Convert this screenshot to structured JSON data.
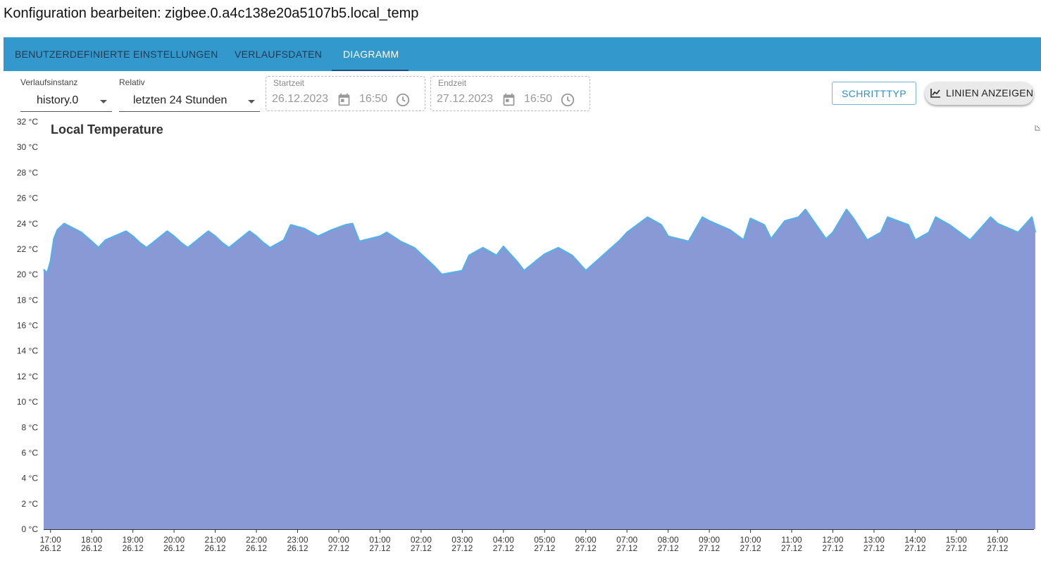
{
  "dialog": {
    "title": "Konfiguration bearbeiten: zigbee.0.a4c138e20a5107b5.local_temp"
  },
  "tabs": [
    {
      "label": "BENUTZERDEFINIERTE EINSTELLUNGEN",
      "active": false
    },
    {
      "label": "VERLAUFSDATEN",
      "active": false
    },
    {
      "label": "DIAGRAMM",
      "active": true
    }
  ],
  "toolbar": {
    "instance": {
      "label": "Verlaufsinstanz",
      "value": "history.0"
    },
    "relative": {
      "label": "Relativ",
      "value": "letzten 24 Stunden"
    },
    "start": {
      "label": "Startzeit",
      "date": "26.12.2023",
      "time": "16:50"
    },
    "end": {
      "label": "Endzeit",
      "date": "27.12.2023",
      "time": "16:50"
    },
    "font_type_button": "SCHRITTTYP",
    "show_lines_button": "LINIEN ANZEIGEN"
  },
  "chart_data": {
    "type": "area",
    "title": "Local Temperature",
    "ylabel": "",
    "xlabel": "",
    "ylim": [
      0,
      32
    ],
    "y_unit": "°C",
    "yticks": [
      "0 °C",
      "2 °C",
      "4 °C",
      "6 °C",
      "8 °C",
      "10 °C",
      "12 °C",
      "14 °C",
      "16 °C",
      "18 °C",
      "20 °C",
      "22 °C",
      "24 °C",
      "26 °C",
      "28 °C",
      "30 °C",
      "32 °C"
    ],
    "xticks": [
      {
        "time": "17:00",
        "date": "26.12"
      },
      {
        "time": "18:00",
        "date": "26.12"
      },
      {
        "time": "19:00",
        "date": "26.12"
      },
      {
        "time": "20:00",
        "date": "26.12"
      },
      {
        "time": "21:00",
        "date": "26.12"
      },
      {
        "time": "22:00",
        "date": "26.12"
      },
      {
        "time": "23:00",
        "date": "26.12"
      },
      {
        "time": "00:00",
        "date": "27.12"
      },
      {
        "time": "01:00",
        "date": "27.12"
      },
      {
        "time": "02:00",
        "date": "27.12"
      },
      {
        "time": "03:00",
        "date": "27.12"
      },
      {
        "time": "04:00",
        "date": "27.12"
      },
      {
        "time": "05:00",
        "date": "27.12"
      },
      {
        "time": "06:00",
        "date": "27.12"
      },
      {
        "time": "07:00",
        "date": "27.12"
      },
      {
        "time": "08:00",
        "date": "27.12"
      },
      {
        "time": "09:00",
        "date": "27.12"
      },
      {
        "time": "10:00",
        "date": "27.12"
      },
      {
        "time": "11:00",
        "date": "27.12"
      },
      {
        "time": "12:00",
        "date": "27.12"
      },
      {
        "time": "13:00",
        "date": "27.12"
      },
      {
        "time": "14:00",
        "date": "27.12"
      },
      {
        "time": "15:00",
        "date": "27.12"
      },
      {
        "time": "16:00",
        "date": "27.12"
      }
    ],
    "x_range": [
      "26.12.2023 16:50",
      "27.12.2023 16:50"
    ],
    "series": [
      {
        "color_fill": "#8899d6",
        "color_line": "#5aaee6",
        "x": [
          "16:50",
          "16:55",
          "17:00",
          "17:05",
          "17:10",
          "17:20",
          "17:45",
          "18:00",
          "18:10",
          "18:20",
          "18:50",
          "19:00",
          "19:10",
          "19:20",
          "19:50",
          "20:00",
          "20:10",
          "20:20",
          "20:50",
          "21:00",
          "21:10",
          "21:20",
          "21:50",
          "22:00",
          "22:10",
          "22:20",
          "22:40",
          "22:50",
          "23:10",
          "23:30",
          "23:50",
          "24:10",
          "24:20",
          "24:30",
          "25:00",
          "25:10",
          "25:30",
          "25:50",
          "26:00",
          "26:10",
          "26:20",
          "26:30",
          "27:00",
          "27:10",
          "27:30",
          "27:50",
          "28:00",
          "28:10",
          "28:20",
          "28:30",
          "29:00",
          "29:20",
          "29:40",
          "29:50",
          "30:00",
          "30:50",
          "31:00",
          "31:30",
          "31:50",
          "32:00",
          "32:30",
          "32:50",
          "33:00",
          "33:30",
          "33:50",
          "34:00",
          "34:20",
          "34:30",
          "34:50",
          "35:10",
          "35:20",
          "35:50",
          "36:00",
          "36:20",
          "36:30",
          "36:50",
          "37:10",
          "37:20",
          "37:50",
          "38:00",
          "38:20",
          "38:30",
          "38:50",
          "39:20",
          "39:30",
          "39:50",
          "40:00",
          "40:30",
          "40:50",
          "40:55"
        ],
        "values": [
          20.4,
          20.1,
          21.0,
          22.8,
          23.5,
          24.0,
          23.3,
          22.6,
          22.1,
          22.7,
          23.4,
          23.0,
          22.5,
          22.1,
          23.4,
          23.0,
          22.5,
          22.1,
          23.4,
          23.0,
          22.5,
          22.1,
          23.4,
          23.0,
          22.5,
          22.1,
          22.7,
          23.9,
          23.6,
          23.0,
          23.5,
          23.9,
          24.0,
          22.6,
          23.0,
          23.3,
          22.6,
          22.1,
          21.6,
          21.1,
          20.6,
          20.0,
          20.3,
          21.5,
          22.1,
          21.5,
          22.2,
          21.6,
          21.0,
          20.3,
          21.6,
          22.1,
          21.5,
          20.9,
          20.3,
          22.7,
          23.3,
          24.5,
          23.9,
          23.0,
          22.6,
          24.5,
          24.2,
          23.5,
          22.7,
          24.4,
          23.9,
          22.8,
          24.2,
          24.5,
          25.1,
          22.8,
          23.3,
          25.1,
          24.4,
          22.7,
          23.3,
          24.5,
          23.9,
          22.7,
          23.3,
          24.5,
          23.9,
          22.7,
          23.3,
          24.5,
          24.0,
          23.3,
          24.5,
          23.3
        ]
      }
    ]
  }
}
